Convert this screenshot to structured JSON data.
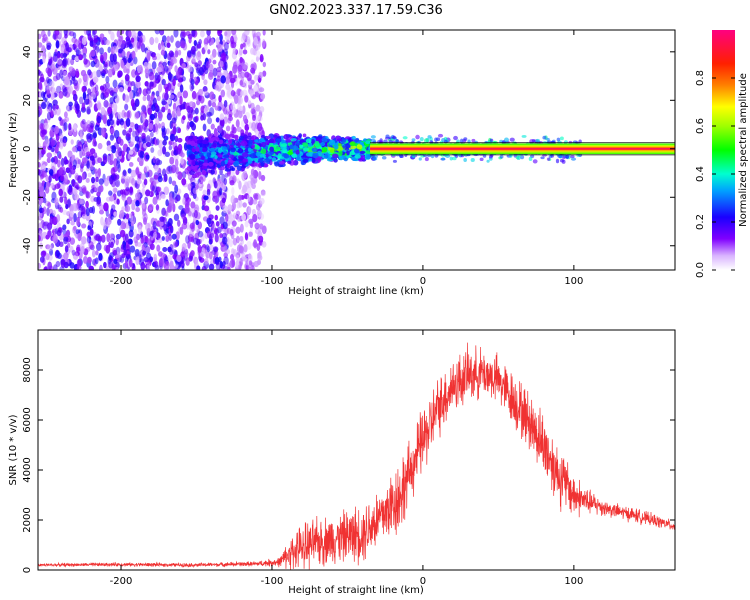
{
  "title": "GN02.2023.337.17.59.C36",
  "chart_data": [
    {
      "type": "heatmap",
      "xlabel": "Height of straight line (km)",
      "ylabel": "Frequency (Hz)",
      "xlim": [
        -255,
        167
      ],
      "ylim": [
        -50,
        49
      ],
      "xticks": [
        -200,
        -100,
        0,
        100
      ],
      "yticks": [
        -40,
        -20,
        0,
        20,
        40
      ],
      "colorbar": {
        "label": "Normalized spectral amplitude",
        "range": [
          0,
          1
        ],
        "ticks": [
          "0.0",
          "0.2",
          "0.4",
          "0.6",
          "0.8"
        ],
        "tick_values": [
          0,
          0.2,
          0.4,
          0.6,
          0.8
        ]
      },
      "regions": [
        {
          "name": "broadband noise",
          "x_range": [
            -255,
            -105
          ],
          "freq_range": [
            -50,
            49
          ],
          "amplitude": 0.15
        },
        {
          "name": "emerging signal",
          "x_range": [
            -155,
            -35
          ],
          "freq_center": 0,
          "freq_halfwidth": 8,
          "amplitude": 0.4
        },
        {
          "name": "narrow line",
          "x_range": [
            -35,
            167
          ],
          "freq_center": 0,
          "freq_halfwidth": 1.5,
          "amplitude": 0.95
        }
      ]
    },
    {
      "type": "line",
      "xlabel": "Height of straight line (km)",
      "ylabel": "SNR (10 * v/v)",
      "xlim": [
        -255,
        167
      ],
      "ylim": [
        0,
        9600
      ],
      "xticks": [
        -200,
        -100,
        0,
        100
      ],
      "yticks": [
        0,
        2000,
        4000,
        6000,
        8000
      ],
      "color": "#f03232",
      "series": [
        {
          "x": [
            -255,
            -200,
            -150,
            -110,
            -95,
            -85,
            -70,
            -55,
            -40,
            -25,
            -15,
            -8,
            0,
            5,
            10,
            20,
            30,
            40,
            50,
            60,
            70,
            80,
            90,
            100,
            110,
            125,
            140,
            155,
            167
          ],
          "y": [
            200,
            220,
            200,
            250,
            320,
            800,
            1100,
            1300,
            1500,
            2300,
            3000,
            4000,
            5200,
            5800,
            6500,
            7400,
            7800,
            7900,
            7600,
            6800,
            6000,
            5000,
            3800,
            3000,
            2700,
            2400,
            2200,
            1950,
            1750
          ],
          "noise": [
            60,
            80,
            80,
            100,
            200,
            800,
            1000,
            1000,
            1200,
            1300,
            1600,
            1200,
            1400,
            1300,
            1200,
            1200,
            1100,
            1000,
            1000,
            1100,
            1200,
            1300,
            1300,
            900,
            500,
            300,
            300,
            250,
            200
          ]
        }
      ]
    }
  ]
}
